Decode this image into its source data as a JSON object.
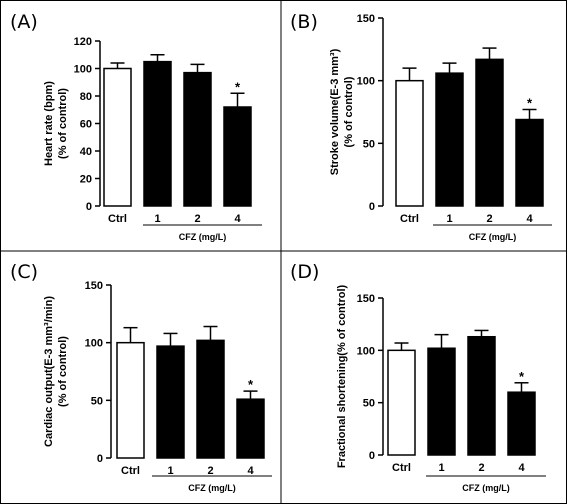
{
  "chart_data": [
    {
      "type": "bar",
      "panel_label": "(A)",
      "ylabel_line1": "Heart rate (bpm)",
      "ylabel_line2": "(% of control)",
      "xlabel": "CFZ (mg/L)",
      "categories": [
        "Ctrl",
        "1",
        "2",
        "4"
      ],
      "values": [
        100,
        105,
        97,
        72
      ],
      "errors": [
        4,
        5,
        6,
        10
      ],
      "fills": [
        "#ffffff",
        "#000000",
        "#000000",
        "#000000"
      ],
      "significance": [
        "",
        "",
        "",
        "*"
      ],
      "ylim": [
        0,
        120
      ],
      "yticks": [
        0,
        20,
        40,
        60,
        80,
        100,
        120
      ],
      "grid": false
    },
    {
      "type": "bar",
      "panel_label": "(B)",
      "ylabel_line1": "Stroke volume(E-3 mm³)",
      "ylabel_line2": "(% of control)",
      "xlabel": "CFZ (mg/L)",
      "categories": [
        "Ctrl",
        "1",
        "2",
        "4"
      ],
      "values": [
        100,
        106,
        117,
        69
      ],
      "errors": [
        10,
        8,
        9,
        8
      ],
      "fills": [
        "#ffffff",
        "#000000",
        "#000000",
        "#000000"
      ],
      "significance": [
        "",
        "",
        "",
        "*"
      ],
      "ylim": [
        0,
        150
      ],
      "yticks": [
        0,
        50,
        100,
        150
      ],
      "grid": false
    },
    {
      "type": "bar",
      "panel_label": "(C)",
      "ylabel_line1": "Cardiac output(E-3 mm³/min)",
      "ylabel_line2": "(% of control)",
      "xlabel": "CFZ (mg/L)",
      "categories": [
        "Ctrl",
        "1",
        "2",
        "4"
      ],
      "values": [
        100,
        97,
        102,
        51
      ],
      "errors": [
        13,
        11,
        12,
        7
      ],
      "fills": [
        "#ffffff",
        "#000000",
        "#000000",
        "#000000"
      ],
      "significance": [
        "",
        "",
        "",
        "*"
      ],
      "ylim": [
        0,
        150
      ],
      "yticks": [
        0,
        50,
        100,
        150
      ],
      "grid": false
    },
    {
      "type": "bar",
      "panel_label": "(D)",
      "ylabel_line1": "Fractional shortening(% of control)",
      "ylabel_line2": "",
      "xlabel": "CFZ (mg/L)",
      "categories": [
        "Ctrl",
        "1",
        "2",
        "4"
      ],
      "values": [
        100,
        102,
        113,
        60
      ],
      "errors": [
        7,
        13,
        6,
        9
      ],
      "fills": [
        "#ffffff",
        "#000000",
        "#000000",
        "#000000"
      ],
      "significance": [
        "",
        "",
        "",
        "*"
      ],
      "ylim": [
        0,
        150
      ],
      "yticks": [
        0,
        50,
        100,
        150
      ],
      "grid": false
    }
  ]
}
